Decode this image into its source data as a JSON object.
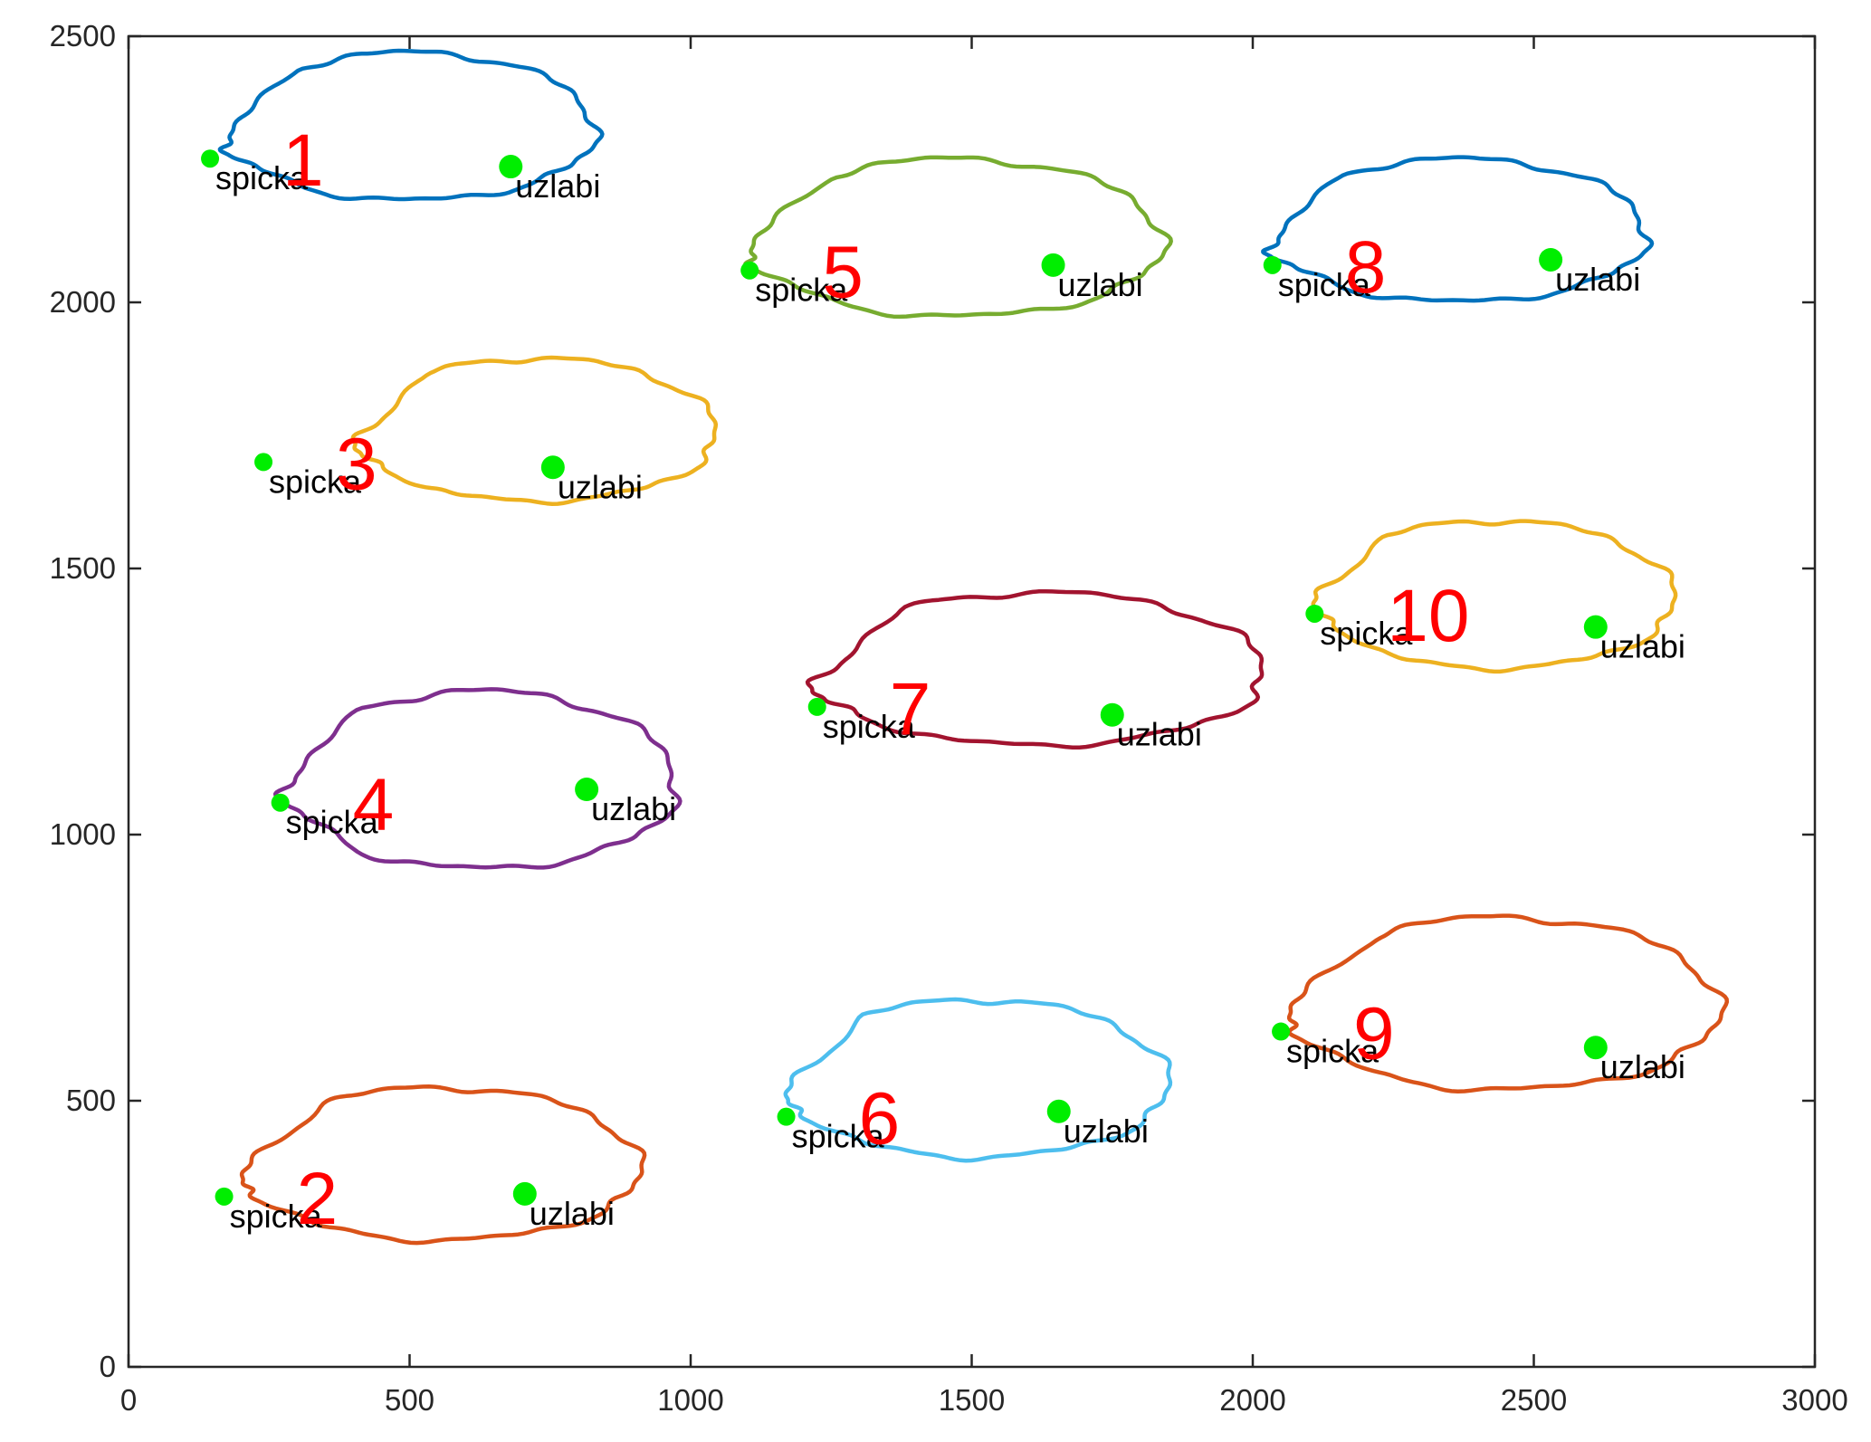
{
  "chart_data": {
    "type": "line",
    "title": "",
    "xlabel": "",
    "ylabel": "",
    "xlim": [
      0,
      3000
    ],
    "ylim": [
      0,
      2500
    ],
    "xticks": [
      "0",
      "500",
      "1000",
      "1500",
      "2000",
      "2500",
      "3000"
    ],
    "yticks": [
      "0",
      "500",
      "1000",
      "1500",
      "2000",
      "2500"
    ],
    "grid": false,
    "legend": "none",
    "point_label_tip": "spicka",
    "point_label_notch": "uzlabi",
    "point_color": "#00ee00",
    "number_color": "#ff0000",
    "series": [
      {
        "number": "1",
        "color": "#0072bd",
        "center": [
          500,
          2320
        ],
        "rx": 330,
        "ry": 150,
        "tip": [
          145,
          2270
        ],
        "notch": [
          680,
          2255
        ]
      },
      {
        "number": "2",
        "color": "#d95319",
        "center": [
          555,
          370
        ],
        "rx": 355,
        "ry": 155,
        "tip": [
          170,
          320
        ],
        "notch": [
          705,
          325
        ]
      },
      {
        "number": "3",
        "color": "#edb120",
        "center": [
          725,
          1750
        ],
        "rx": 320,
        "ry": 145,
        "tip": [
          240,
          1700
        ],
        "notch": [
          755,
          1690
        ]
      },
      {
        "number": "4",
        "color": "#7e2f8e",
        "center": [
          625,
          1090
        ],
        "rx": 350,
        "ry": 180,
        "tip": [
          270,
          1060
        ],
        "notch": [
          815,
          1085
        ]
      },
      {
        "number": "5",
        "color": "#77ac30",
        "center": [
          1470,
          2110
        ],
        "rx": 370,
        "ry": 160,
        "tip": [
          1105,
          2060
        ],
        "notch": [
          1645,
          2070
        ]
      },
      {
        "number": "6",
        "color": "#4dbeee",
        "center": [
          1510,
          530
        ],
        "rx": 340,
        "ry": 160,
        "tip": [
          1170,
          470
        ],
        "notch": [
          1655,
          480
        ]
      },
      {
        "number": "7",
        "color": "#a2142f",
        "center": [
          1620,
          1300
        ],
        "rx": 400,
        "ry": 155,
        "tip": [
          1225,
          1240
        ],
        "notch": [
          1750,
          1225
        ]
      },
      {
        "number": "8",
        "color": "#0072bd",
        "center": [
          2365,
          2125
        ],
        "rx": 335,
        "ry": 145,
        "tip": [
          2035,
          2070
        ],
        "notch": [
          2530,
          2080
        ]
      },
      {
        "number": "9",
        "color": "#d95319",
        "center": [
          2445,
          670
        ],
        "rx": 385,
        "ry": 175,
        "tip": [
          2050,
          630
        ],
        "notch": [
          2610,
          600
        ]
      },
      {
        "number": "10",
        "color": "#edb120",
        "center": [
          2430,
          1440
        ],
        "rx": 320,
        "ry": 150,
        "tip": [
          2110,
          1415
        ],
        "notch": [
          2610,
          1390
        ]
      }
    ]
  }
}
